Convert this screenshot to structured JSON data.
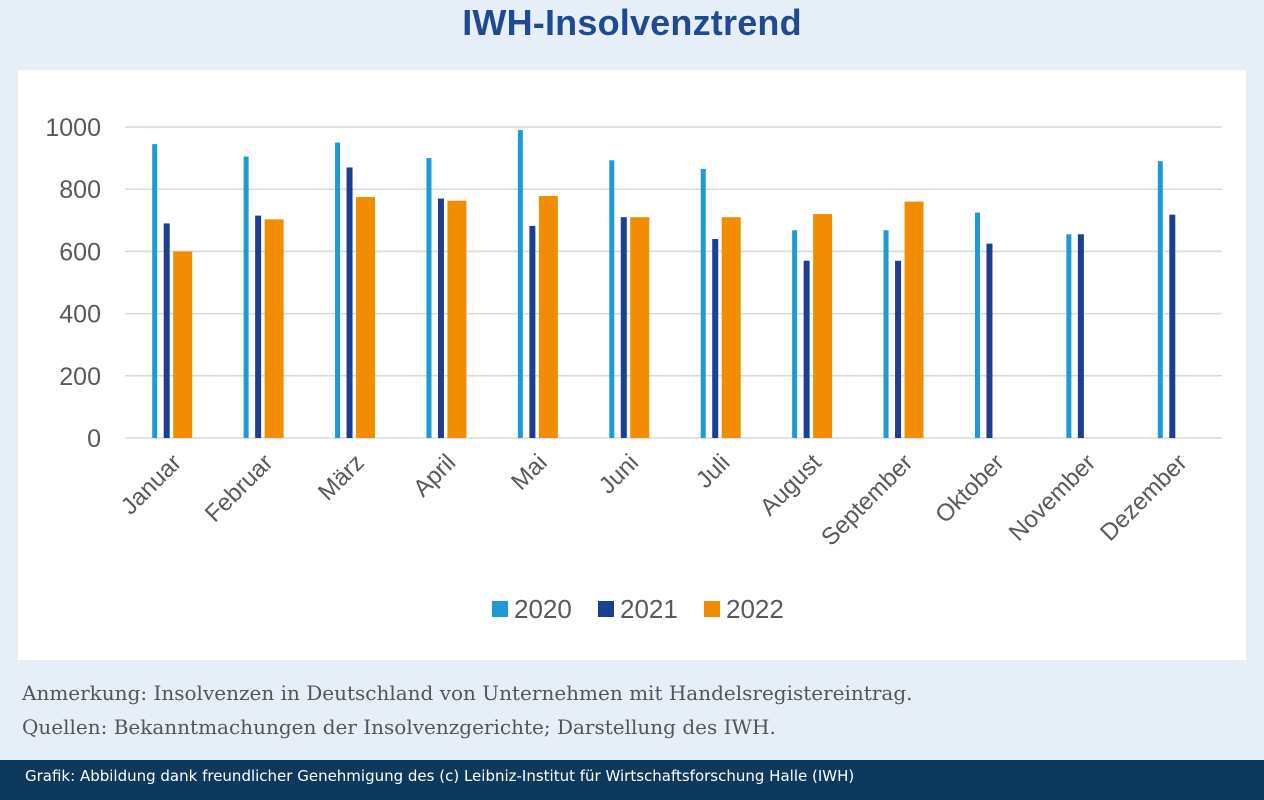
{
  "header": {
    "title": "IWH-Insolvenztrend"
  },
  "notes": {
    "line1": "Anmerkung: Insolvenzen in Deutschland von Unternehmen mit Handelsregistereintrag.",
    "line2": "Quellen: Bekanntmachungen der Insolvenzgerichte; Darstellung des IWH."
  },
  "footer": {
    "credit": "Grafik: Abbildung dank freundlicher Genehmigung des (c) Leibniz-Institut für Wirtschaftsforschung Halle (IWH)"
  },
  "colors": {
    "title": "#1f4a93",
    "footer_bg": "#0d3a5c"
  },
  "chart_data": {
    "type": "bar",
    "title": "IWH-Insolvenztrend",
    "xlabel": "",
    "ylabel": "",
    "ylim": [
      0,
      1000
    ],
    "yticks": [
      0,
      200,
      400,
      600,
      800,
      1000
    ],
    "grid": true,
    "legend_position": "bottom",
    "categories": [
      "Januar",
      "Februar",
      "März",
      "April",
      "Mai",
      "Juni",
      "Juli",
      "August",
      "September",
      "Oktober",
      "November",
      "Dezember"
    ],
    "series": [
      {
        "name": "2020",
        "color": "#1e9bd7",
        "values": [
          945,
          905,
          950,
          900,
          990,
          893,
          865,
          668,
          668,
          725,
          655,
          890
        ]
      },
      {
        "name": "2021",
        "color": "#1d3f91",
        "values": [
          690,
          715,
          870,
          770,
          682,
          710,
          640,
          570,
          570,
          625,
          655,
          718
        ]
      },
      {
        "name": "2022",
        "color": "#f28c00",
        "values": [
          600,
          703,
          775,
          763,
          778,
          710,
          710,
          720,
          760,
          null,
          null,
          null
        ]
      }
    ]
  }
}
